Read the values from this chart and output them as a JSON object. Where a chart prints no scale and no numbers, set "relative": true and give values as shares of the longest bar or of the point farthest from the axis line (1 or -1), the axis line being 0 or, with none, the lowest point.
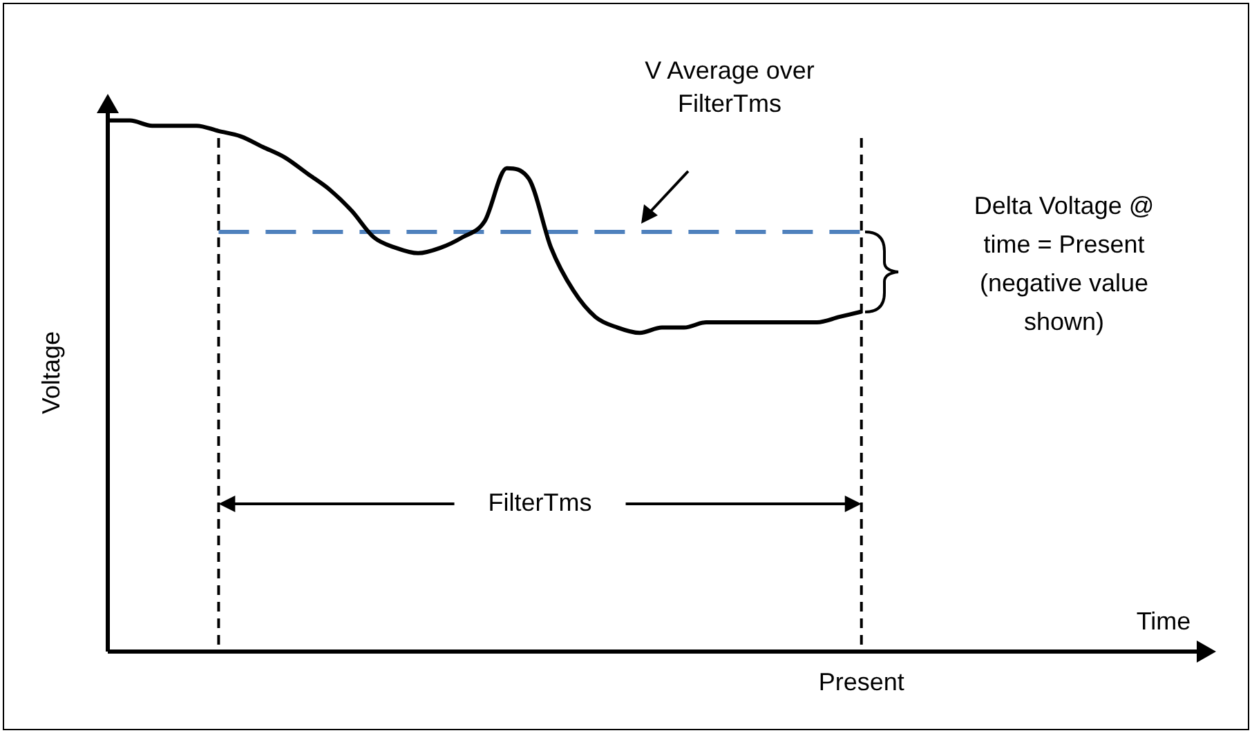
{
  "chart_data": {
    "type": "line",
    "relative": true,
    "xlabel": "Time",
    "ylabel": "Voltage",
    "legend": false,
    "marker": "none",
    "categories": [
      null,
      null,
      null,
      null,
      null,
      null,
      null,
      null,
      null,
      null,
      null,
      null,
      null,
      null,
      null,
      null,
      null,
      null,
      null,
      null,
      null,
      null,
      null,
      null,
      null,
      null,
      null,
      null,
      null,
      null,
      null,
      null,
      null,
      null,
      null,
      null,
      null,
      null,
      null,
      null,
      null,
      null,
      null,
      null,
      null,
      null,
      null,
      null,
      null,
      null,
      null
    ],
    "series": [
      {
        "color": "#000000",
        "values": [
          1.0,
          1.0,
          0.99,
          0.99,
          0.99,
          0.98,
          0.97,
          0.95,
          0.93,
          0.9,
          0.87,
          0.83,
          0.78,
          0.76,
          0.75,
          0.76,
          0.78,
          0.81,
          0.91,
          0.89,
          0.76,
          0.68,
          0.63,
          0.61,
          0.6,
          0.61,
          0.61,
          0.62,
          0.62,
          0.62,
          0.62,
          0.62,
          0.62,
          0.63,
          0.64,
          null,
          null,
          null,
          null,
          null,
          null,
          null,
          null,
          null,
          null,
          null,
          null,
          null,
          null,
          null,
          null
        ]
      },
      {
        "color": "#4f81bd",
        "line_style": "dashed",
        "values": [
          null,
          null,
          null,
          null,
          null,
          0.79,
          0.79,
          0.79,
          0.79,
          0.79,
          0.79,
          0.79,
          0.79,
          0.79,
          0.79,
          0.79,
          0.79,
          0.79,
          0.79,
          0.79,
          0.79,
          0.79,
          0.79,
          0.79,
          0.79,
          0.79,
          0.79,
          0.79,
          0.79,
          0.79,
          0.79,
          0.79,
          0.79,
          0.79,
          0.79,
          null,
          null,
          null,
          null,
          null,
          null,
          null,
          null,
          null,
          null,
          null,
          null,
          null,
          null,
          null,
          null
        ]
      }
    ],
    "annotations": [
      "V Average over FilterTms",
      "Delta Voltage @ time = Present (negative value shown)",
      "FilterTms",
      "Present"
    ]
  }
}
